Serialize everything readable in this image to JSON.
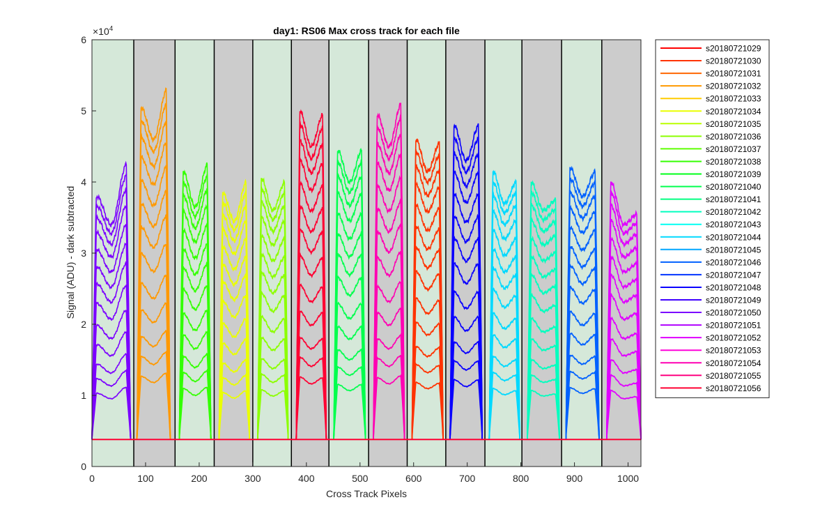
{
  "chart_data": {
    "type": "line",
    "title": "day1: RS06  Max cross track for each file",
    "xlabel": "Cross Track Pixels",
    "ylabel": "Signal (ADU) - dark subtracted",
    "xlim": [
      0,
      1024
    ],
    "ylim": [
      0,
      60000
    ],
    "x_ticks": [
      0,
      100,
      200,
      300,
      400,
      500,
      600,
      700,
      800,
      900,
      1000
    ],
    "x_tick_labels": [
      "0",
      "100",
      "200",
      "300",
      "400",
      "500",
      "600",
      "700",
      "800",
      "900",
      "1000"
    ],
    "y_ticks": [
      0,
      10000,
      20000,
      30000,
      40000,
      50000,
      60000
    ],
    "y_tick_labels": [
      "0",
      "1",
      "2",
      "3",
      "4",
      "5",
      "6"
    ],
    "y_exponent_label": "×10",
    "y_exponent_power": "4",
    "baseline": 3800,
    "bands": [
      {
        "start": 0,
        "end": 78,
        "fill": "#d5e8d9"
      },
      {
        "start": 78,
        "end": 155,
        "fill": "#cccccc"
      },
      {
        "start": 155,
        "end": 228,
        "fill": "#d5e8d9"
      },
      {
        "start": 228,
        "end": 300,
        "fill": "#cccccc"
      },
      {
        "start": 300,
        "end": 372,
        "fill": "#d5e8d9"
      },
      {
        "start": 372,
        "end": 442,
        "fill": "#cccccc"
      },
      {
        "start": 442,
        "end": 516,
        "fill": "#d5e8d9"
      },
      {
        "start": 516,
        "end": 588,
        "fill": "#cccccc"
      },
      {
        "start": 588,
        "end": 660,
        "fill": "#d5e8d9"
      },
      {
        "start": 660,
        "end": 733,
        "fill": "#cccccc"
      },
      {
        "start": 733,
        "end": 802,
        "fill": "#d5e8d9"
      },
      {
        "start": 802,
        "end": 876,
        "fill": "#cccccc"
      },
      {
        "start": 876,
        "end": 951,
        "fill": "#d5e8d9"
      },
      {
        "start": 951,
        "end": 1024,
        "fill": "#cccccc"
      }
    ],
    "segments": [
      {
        "start": 0,
        "end": 72,
        "color": "#7b00ff",
        "peak_left": 38000,
        "dip": 34000,
        "peak_right": 42500
      },
      {
        "start": 84,
        "end": 146,
        "color": "#ff9900",
        "peak_left": 50500,
        "dip": 46000,
        "peak_right": 53000
      },
      {
        "start": 163,
        "end": 222,
        "color": "#33ff00",
        "peak_left": 41500,
        "dip": 36500,
        "peak_right": 42500
      },
      {
        "start": 237,
        "end": 294,
        "color": "#eaff00",
        "peak_left": 38500,
        "dip": 34500,
        "peak_right": 40000
      },
      {
        "start": 309,
        "end": 366,
        "color": "#8cff00",
        "peak_left": 40500,
        "dip": 36000,
        "peak_right": 40000
      },
      {
        "start": 381,
        "end": 437,
        "color": "#ff0033",
        "peak_left": 50000,
        "dip": 45000,
        "peak_right": 49500
      },
      {
        "start": 451,
        "end": 510,
        "color": "#00ff4d",
        "peak_left": 44500,
        "dip": 40000,
        "peak_right": 44500
      },
      {
        "start": 525,
        "end": 583,
        "color": "#ff00b3",
        "peak_left": 49500,
        "dip": 45000,
        "peak_right": 51000
      },
      {
        "start": 597,
        "end": 655,
        "color": "#ff3300",
        "peak_left": 46000,
        "dip": 41500,
        "peak_right": 45500
      },
      {
        "start": 668,
        "end": 728,
        "color": "#0a00ff",
        "peak_left": 48000,
        "dip": 43000,
        "peak_right": 48000
      },
      {
        "start": 741,
        "end": 798,
        "color": "#00d9ff",
        "peak_left": 41500,
        "dip": 37000,
        "peak_right": 40000
      },
      {
        "start": 812,
        "end": 872,
        "color": "#00ffbf",
        "peak_left": 40000,
        "dip": 36000,
        "peak_right": 37500
      },
      {
        "start": 884,
        "end": 946,
        "color": "#0061ff",
        "peak_left": 42000,
        "dip": 38000,
        "peak_right": 41500
      },
      {
        "start": 960,
        "end": 1024,
        "color": "#e000ff",
        "peak_left": 40000,
        "dip": 34000,
        "peak_right": 35500
      }
    ],
    "series": [
      {
        "name": "s20180721029",
        "color": "#ff0000"
      },
      {
        "name": "s20180721030",
        "color": "#ff3300"
      },
      {
        "name": "s20180721031",
        "color": "#ff6600"
      },
      {
        "name": "s20180721032",
        "color": "#ff9900"
      },
      {
        "name": "s20180721033",
        "color": "#ffcc00"
      },
      {
        "name": "s20180721034",
        "color": "#eaff00"
      },
      {
        "name": "s20180721035",
        "color": "#bbff00"
      },
      {
        "name": "s20180721036",
        "color": "#8cff00"
      },
      {
        "name": "s20180721037",
        "color": "#5eff00"
      },
      {
        "name": "s20180721038",
        "color": "#33ff00"
      },
      {
        "name": "s20180721039",
        "color": "#00ff1a"
      },
      {
        "name": "s20180721040",
        "color": "#00ff4d"
      },
      {
        "name": "s20180721041",
        "color": "#00ff80"
      },
      {
        "name": "s20180721042",
        "color": "#00ffbf"
      },
      {
        "name": "s20180721043",
        "color": "#00fff2"
      },
      {
        "name": "s20180721044",
        "color": "#00d9ff"
      },
      {
        "name": "s20180721045",
        "color": "#00a6ff"
      },
      {
        "name": "s20180721046",
        "color": "#0061ff"
      },
      {
        "name": "s20180721047",
        "color": "#0033ff"
      },
      {
        "name": "s20180721048",
        "color": "#0a00ff"
      },
      {
        "name": "s20180721049",
        "color": "#4000ff"
      },
      {
        "name": "s20180721050",
        "color": "#7b00ff"
      },
      {
        "name": "s20180721051",
        "color": "#b000ff"
      },
      {
        "name": "s20180721052",
        "color": "#e000ff"
      },
      {
        "name": "s20180721053",
        "color": "#ff00d9"
      },
      {
        "name": "s20180721054",
        "color": "#ff00b3"
      },
      {
        "name": "s20180721055",
        "color": "#ff0080"
      },
      {
        "name": "s20180721056",
        "color": "#ff0033"
      }
    ],
    "grid": false,
    "legend_position": "outside-right"
  }
}
